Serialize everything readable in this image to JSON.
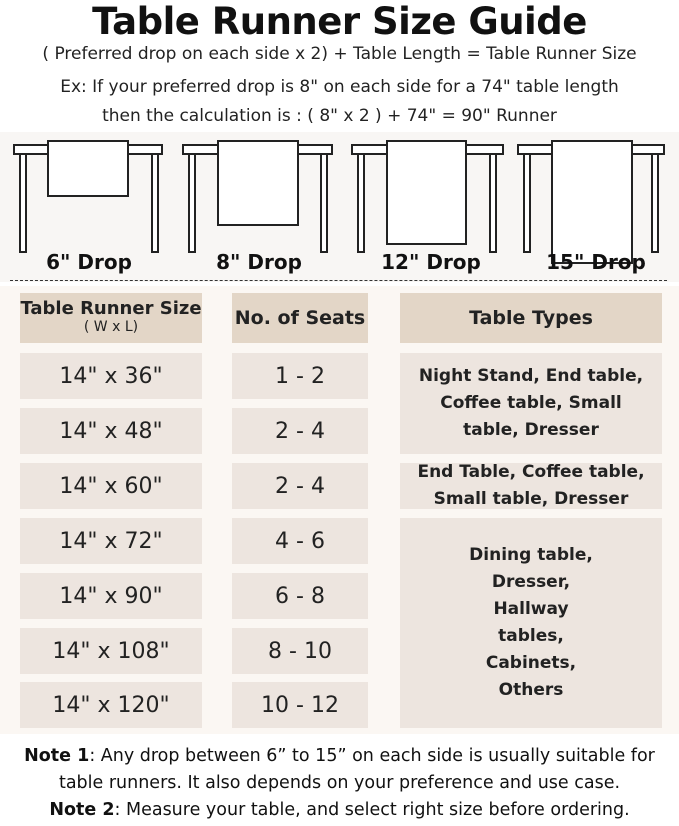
{
  "title": "Table Runner Size Guide",
  "formula": "( Preferred drop on each side x 2) + Table Length = Table Runner Size",
  "example_line1": "Ex: If your preferred drop is 8\" on each side for a 74\" table length",
  "example_line2": "then the calculation is : ( 8\" x 2 ) + 74\" = 90\" Runner",
  "drops": [
    {
      "label": "6\" Drop",
      "inches": 6
    },
    {
      "label": "8\" Drop",
      "inches": 8
    },
    {
      "label": "12\" Drop",
      "inches": 12
    },
    {
      "label": "15\" Drop",
      "inches": 15
    }
  ],
  "table": {
    "headers": {
      "size": "Table Runner Size",
      "size_sub": "( W x L)",
      "seats": "No. of Seats",
      "types": "Table Types"
    },
    "rows": [
      {
        "size": "14\" x 36\"",
        "seats": "1 - 2"
      },
      {
        "size": "14\" x 48\"",
        "seats": "2 - 4"
      },
      {
        "size": "14\" x 60\"",
        "seats": "2 - 4"
      },
      {
        "size": "14\" x 72\"",
        "seats": "4 - 6"
      },
      {
        "size": "14\" x 90\"",
        "seats": "6 - 8"
      },
      {
        "size": "14\" x 108\"",
        "seats": "8 - 10"
      },
      {
        "size": "14\" x 120\"",
        "seats": "10 - 12"
      }
    ],
    "types": [
      "Night Stand, End table, Coffee table, Small table, Dresser",
      "End Table, Coffee table, Small table, Dresser",
      "Dining table, Dresser, Hallway tables, Cabinets, Others"
    ]
  },
  "notes": [
    {
      "label": "Note 1",
      "text": ": Any drop between 6” to 15” on each side is usually suitable for",
      "text2": "table runners. It also depends on your preference and use case."
    },
    {
      "label": "Note 2",
      "text": ": Measure your table, and select right size before ordering."
    }
  ],
  "colors": {
    "header_cell": "#e3d6c7",
    "body_cell": "#ede5df",
    "panel": "#fbf7f3"
  }
}
